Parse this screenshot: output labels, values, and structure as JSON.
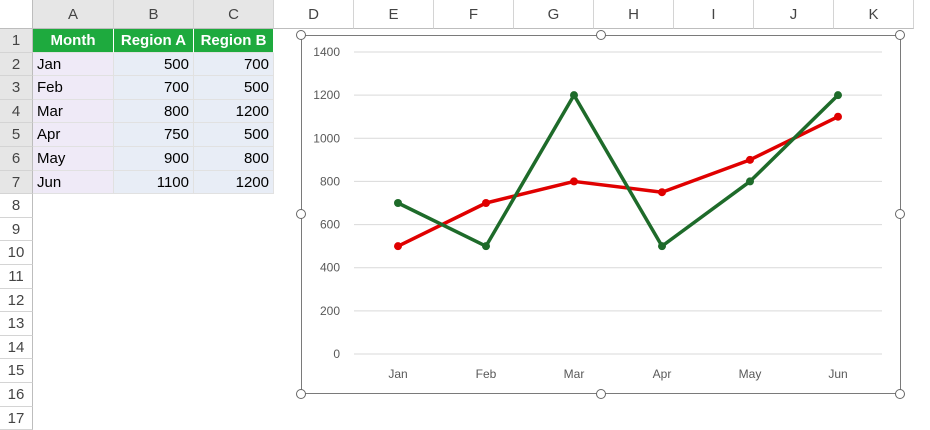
{
  "sheet": {
    "columns": [
      "A",
      "B",
      "C",
      "D",
      "E",
      "F",
      "G",
      "H",
      "I",
      "J",
      "K"
    ],
    "rows": [
      "1",
      "2",
      "3",
      "4",
      "5",
      "6",
      "7",
      "8",
      "9",
      "10",
      "11",
      "12",
      "13",
      "14",
      "15",
      "16",
      "17"
    ],
    "header": [
      "Month",
      "Region A",
      "Region B"
    ],
    "data": [
      [
        "Jan",
        "500",
        "700"
      ],
      [
        "Feb",
        "700",
        "500"
      ],
      [
        "Mar",
        "800",
        "1200"
      ],
      [
        "Apr",
        "750",
        "500"
      ],
      [
        "May",
        "900",
        "800"
      ],
      [
        "Jun",
        "1100",
        "1200"
      ]
    ],
    "header_color": "#1eaa3e"
  },
  "chart_data": {
    "type": "line",
    "categories": [
      "Jan",
      "Feb",
      "Mar",
      "Apr",
      "May",
      "Jun"
    ],
    "series": [
      {
        "values": [
          500,
          700,
          800,
          750,
          900,
          1100
        ],
        "color": "#e00000"
      },
      {
        "values": [
          700,
          500,
          1200,
          500,
          800,
          1200
        ],
        "color": "#1e6b2a"
      }
    ],
    "ylim": [
      0,
      1400
    ],
    "yticks": [
      "0",
      "200",
      "400",
      "600",
      "800",
      "1000",
      "1200",
      "1400"
    ],
    "grid": true,
    "title": "",
    "xlabel": "",
    "ylabel": ""
  }
}
